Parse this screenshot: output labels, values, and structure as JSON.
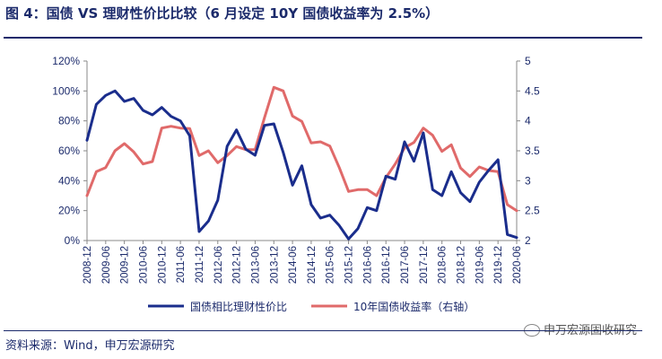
{
  "header": {
    "title": "图 4：国债 VS 理财性价比比较（6 月设定 10Y 国债收益率为 2.5%）"
  },
  "footer": {
    "source": "资料来源：Wind，申万宏源研究",
    "watermark": "申万宏源固收研究"
  },
  "colors": {
    "series1": "#1a2d8c",
    "series2": "#e06a6a",
    "text": "#1b2a6b",
    "axis": "#888888"
  },
  "chart_data": {
    "type": "line",
    "title": "",
    "x": [
      "2008-12",
      "2009-03",
      "2009-06",
      "2009-09",
      "2009-12",
      "2010-03",
      "2010-06",
      "2010-09",
      "2010-12",
      "2011-03",
      "2011-06",
      "2011-09",
      "2011-12",
      "2012-03",
      "2012-06",
      "2012-09",
      "2012-12",
      "2013-03",
      "2013-06",
      "2013-09",
      "2013-12",
      "2014-03",
      "2014-06",
      "2014-09",
      "2014-12",
      "2015-03",
      "2015-06",
      "2015-09",
      "2015-12",
      "2016-03",
      "2016-06",
      "2016-09",
      "2016-12",
      "2017-03",
      "2017-06",
      "2017-09",
      "2017-12",
      "2018-03",
      "2018-06",
      "2018-09",
      "2018-12",
      "2019-03",
      "2019-06",
      "2019-09",
      "2019-12",
      "2020-03",
      "2020-06"
    ],
    "xticks": [
      "2008-12",
      "2009-06",
      "2009-12",
      "2010-06",
      "2010-12",
      "2011-06",
      "2011-12",
      "2012-06",
      "2012-12",
      "2013-06",
      "2013-12",
      "2014-06",
      "2014-12",
      "2015-06",
      "2015-12",
      "2016-06",
      "2016-12",
      "2017-06",
      "2017-12",
      "2018-06",
      "2018-12",
      "2019-06",
      "2019-12",
      "2020-06"
    ],
    "y_left": {
      "ticks": [
        "0%",
        "20%",
        "40%",
        "60%",
        "80%",
        "100%",
        "120%"
      ],
      "range": [
        0,
        1.2
      ]
    },
    "y_right": {
      "ticks": [
        "2",
        "2.5",
        "3",
        "3.5",
        "4",
        "4.5",
        "5"
      ],
      "range": [
        2,
        5
      ]
    },
    "series": [
      {
        "name": "国债相比理财性价比",
        "axis": "left",
        "values": [
          0.67,
          0.91,
          0.97,
          1.0,
          0.93,
          0.95,
          0.87,
          0.84,
          0.89,
          0.83,
          0.8,
          0.7,
          0.06,
          0.13,
          0.27,
          0.63,
          0.74,
          0.61,
          0.57,
          0.77,
          0.78,
          0.59,
          0.37,
          0.5,
          0.24,
          0.15,
          0.17,
          0.1,
          0.01,
          0.08,
          0.22,
          0.2,
          0.43,
          0.41,
          0.66,
          0.53,
          0.72,
          0.34,
          0.3,
          0.46,
          0.32,
          0.26,
          0.39,
          0.47,
          0.54,
          0.04,
          0.02
        ]
      },
      {
        "name": "10年国债收益率（右轴）",
        "axis": "right",
        "values": [
          2.75,
          3.15,
          3.22,
          3.5,
          3.62,
          3.48,
          3.28,
          3.32,
          3.88,
          3.91,
          3.88,
          3.87,
          3.42,
          3.5,
          3.3,
          3.42,
          3.57,
          3.52,
          3.52,
          4.05,
          4.56,
          4.5,
          4.08,
          3.99,
          3.63,
          3.65,
          3.58,
          3.22,
          2.82,
          2.85,
          2.85,
          2.75,
          3.05,
          3.28,
          3.55,
          3.64,
          3.88,
          3.76,
          3.49,
          3.6,
          3.21,
          3.07,
          3.23,
          3.17,
          3.15,
          2.6,
          2.5
        ]
      }
    ],
    "legend_position": "bottom",
    "grid": false
  }
}
